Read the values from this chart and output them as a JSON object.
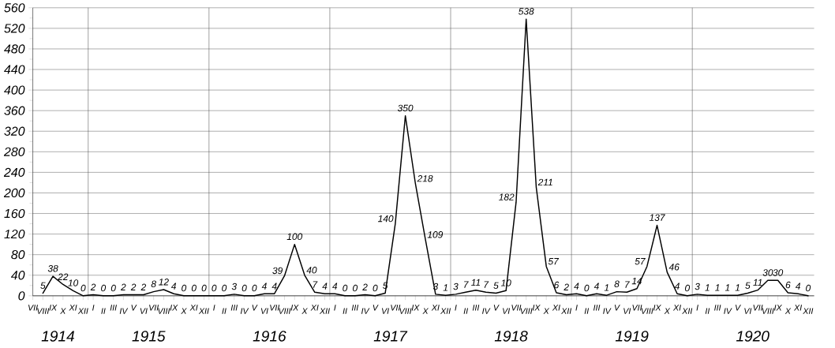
{
  "chart_data": {
    "type": "line",
    "color": "#000000",
    "grid": true,
    "data_labels": true,
    "categories": [
      "VII",
      "VIII",
      "IX",
      "X",
      "XI",
      "XII",
      "I",
      "II",
      "III",
      "IV",
      "V",
      "VI",
      "VII",
      "VIII",
      "IX",
      "X",
      "XI",
      "XII",
      "I",
      "II",
      "III",
      "IV",
      "V",
      "VI",
      "VII",
      "VIII",
      "IX",
      "X",
      "XI",
      "XII",
      "I",
      "II",
      "III",
      "IV",
      "V",
      "VI",
      "VII",
      "VIII",
      "IX",
      "X",
      "XI",
      "XII",
      "I",
      "II",
      "III",
      "IV",
      "V",
      "VI",
      "VII",
      "VIII",
      "IX",
      "X",
      "XI",
      "XII",
      "I",
      "II",
      "III",
      "IV",
      "V",
      "VI",
      "VII",
      "VIII",
      "IX",
      "X",
      "XI",
      "XII",
      "I",
      "II",
      "III",
      "IV",
      "V",
      "VI",
      "VII",
      "VIII",
      "IX",
      "X",
      "XI",
      "XII"
    ],
    "values": [
      null,
      5,
      38,
      22,
      10,
      0,
      2,
      0,
      0,
      2,
      2,
      2,
      8,
      12,
      4,
      0,
      0,
      0,
      0,
      0,
      3,
      0,
      0,
      4,
      4,
      39,
      100,
      40,
      7,
      4,
      4,
      0,
      0,
      2,
      0,
      5,
      140,
      350,
      218,
      109,
      3,
      1,
      3,
      7,
      11,
      7,
      5,
      10,
      182,
      538,
      211,
      57,
      6,
      2,
      4,
      0,
      4,
      1,
      8,
      7,
      14,
      57,
      137,
      46,
      4,
      0,
      3,
      1,
      1,
      1,
      1,
      5,
      11,
      30,
      30,
      6,
      4,
      0
    ],
    "ylim": [
      0,
      560
    ],
    "yticks": [
      0,
      40,
      80,
      120,
      160,
      200,
      240,
      280,
      320,
      360,
      400,
      440,
      480,
      520,
      560
    ],
    "annotations": [
      "1914",
      "1915",
      "1916",
      "1917",
      "1918",
      "1919",
      "1920"
    ]
  }
}
